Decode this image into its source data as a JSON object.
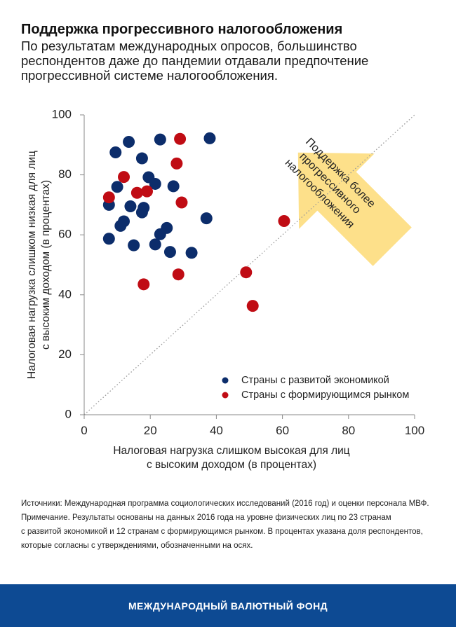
{
  "header": {
    "title": "Поддержка прогрессивного налогообложения",
    "subtitle": "По результатам международных опросов, большинство респондентов даже до пандемии отдавали предпочтение прогрессивной системе налогообложения."
  },
  "chart_data": {
    "type": "scatter",
    "xlabel": [
      "Налоговая нагрузка слишком высокая для лиц",
      "с высоким доходом (в процентах)"
    ],
    "ylabel": [
      "Налоговая нагрузка слишком низкая для лиц",
      "с высоким доходом (в процентах)"
    ],
    "xlim": [
      0,
      100
    ],
    "ylim": [
      0,
      100
    ],
    "x_ticks": [
      0,
      20,
      40,
      60,
      80,
      100
    ],
    "y_ticks": [
      0,
      20,
      40,
      60,
      80,
      100
    ],
    "grid": false,
    "legend_position": "bottom-right",
    "diagonal_reference_line": true,
    "annotation": [
      "Поддержка более",
      "прогрессивного",
      "налогообложения"
    ],
    "series": [
      {
        "name": "Страны с развитой экономикой",
        "color": "#0c2d6b",
        "points": [
          [
            9.5,
            87.5
          ],
          [
            13.5,
            91
          ],
          [
            17.5,
            85.5
          ],
          [
            23,
            91.8
          ],
          [
            38,
            92.2
          ],
          [
            19.5,
            79.2
          ],
          [
            10,
            76
          ],
          [
            21.5,
            77
          ],
          [
            27,
            76.2
          ],
          [
            7.5,
            70
          ],
          [
            14,
            69.5
          ],
          [
            18,
            69
          ],
          [
            17.5,
            67.5
          ],
          [
            12,
            64.5
          ],
          [
            11,
            63
          ],
          [
            25,
            62.3
          ],
          [
            23,
            60.2
          ],
          [
            37,
            65.5
          ],
          [
            7.5,
            58.7
          ],
          [
            15,
            56.5
          ],
          [
            21.5,
            56.8
          ],
          [
            26,
            54.3
          ],
          [
            32.5,
            54
          ]
        ]
      },
      {
        "name": "Страны с формирующимся рынком",
        "color": "#c00c14",
        "points": [
          [
            29,
            92
          ],
          [
            12,
            79.3
          ],
          [
            28,
            83.8
          ],
          [
            7.5,
            72.5
          ],
          [
            16,
            74
          ],
          [
            19,
            74.5
          ],
          [
            29.5,
            70.8
          ],
          [
            60.5,
            64.6
          ],
          [
            18,
            43.5
          ],
          [
            28.5,
            46.8
          ],
          [
            49,
            47.5
          ],
          [
            51,
            36.3
          ]
        ]
      }
    ]
  },
  "notes": {
    "sources": "Источники: Международная программа социологических исследований (2016 год) и оценки персонала МВФ.",
    "note_line1": "Примечание. Результаты основаны на данных 2016 года на уровне физических лиц по 23 странам",
    "note_line2": "с развитой экономикой и 12 странам с формирующимся рынком. В процентах указана доля респондентов,",
    "note_line3": "которые согласны с утверждениями, обозначенными на осях."
  },
  "footer": {
    "org": "МЕЖДУНАРОДНЫЙ ВАЛЮТНЫЙ ФОНД",
    "color": "#0d4a93"
  },
  "colors": {
    "arrow_fill": "#fde08a"
  }
}
